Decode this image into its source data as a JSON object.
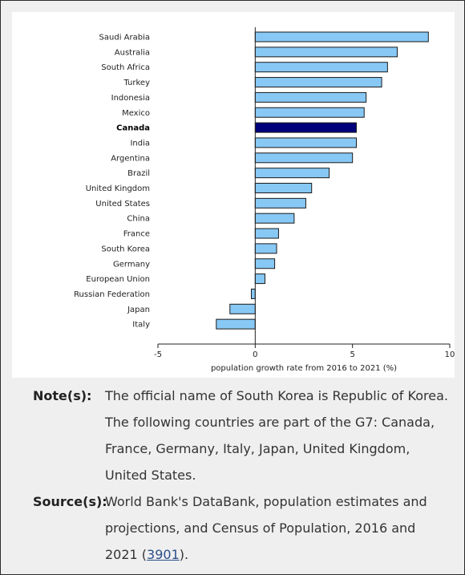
{
  "chart_data": {
    "type": "bar",
    "orientation": "horizontal",
    "categories": [
      "Saudi Arabia",
      "Australia",
      "South Africa",
      "Turkey",
      "Indonesia",
      "Mexico",
      "Canada",
      "India",
      "Argentina",
      "Brazil",
      "United Kingdom",
      "United States",
      "China",
      "France",
      "South Korea",
      "Germany",
      "European Union",
      "Russian Federation",
      "Japan",
      "Italy"
    ],
    "values": [
      8.9,
      7.3,
      6.8,
      6.5,
      5.7,
      5.6,
      5.2,
      5.2,
      5.0,
      3.8,
      2.9,
      2.6,
      2.0,
      1.2,
      1.1,
      1.0,
      0.5,
      -0.2,
      -1.3,
      -2.0
    ],
    "highlight": "Canada",
    "xlabel": "population growth rate from 2016 to 2021 (%)",
    "ylabel": "",
    "xlim": [
      -5,
      10
    ],
    "xticks": [
      -5,
      0,
      5,
      10
    ],
    "grid": false,
    "colors": {
      "bar": "#87c8f5",
      "highlight": "#00007a",
      "outline": "#1a1a1a"
    }
  },
  "notes": {
    "notes_label": "Note(s):",
    "notes_lines": [
      "The official name of South Korea is Republic of Korea.",
      "The following countries are part of the G7: Canada, France, Germany, Italy, Japan, United Kingdom, United States."
    ],
    "source_label": "Source(s):",
    "source_text": "World Bank's DataBank, population estimates and projections, and Census of Population, 2016 and 2021 (",
    "source_link": "3901",
    "source_end": ")."
  }
}
